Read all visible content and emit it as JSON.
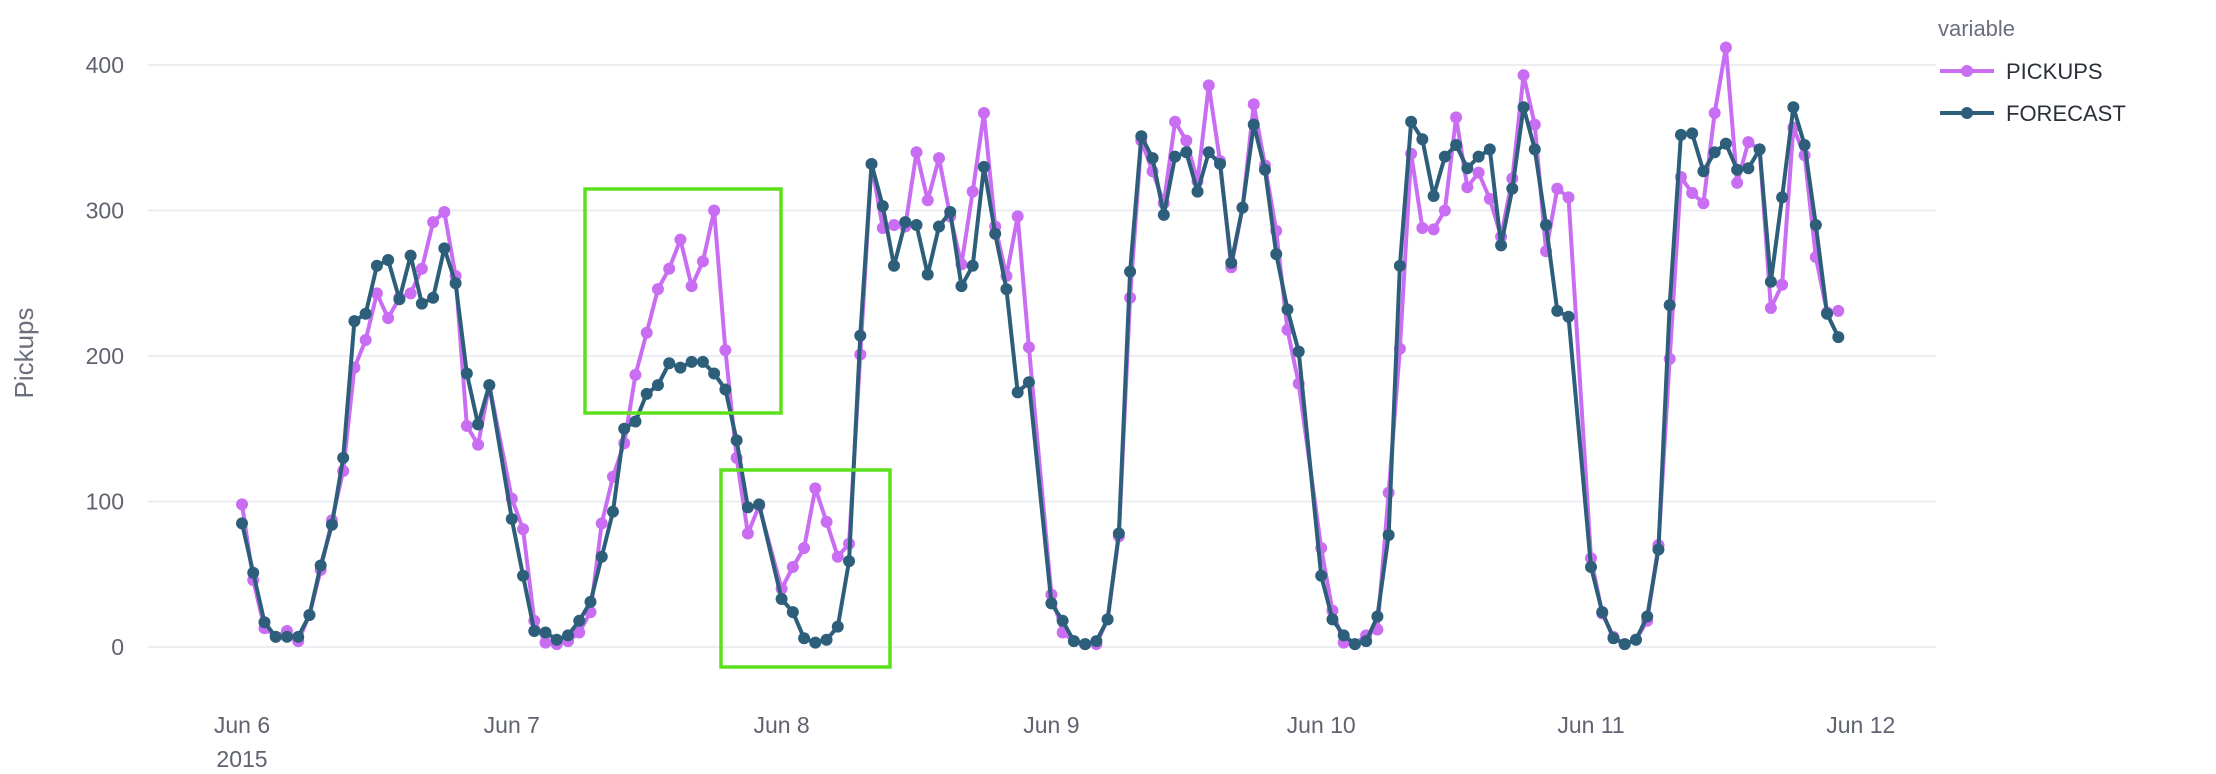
{
  "chart_data": {
    "type": "line",
    "ylabel": "Pickups",
    "xlabel": "",
    "ylim": [
      0,
      410
    ],
    "yticks": [
      0,
      100,
      200,
      300,
      400
    ],
    "xticks": [
      {
        "date": "2015-06-06",
        "label": "Jun 6",
        "sublabel": "2015"
      },
      {
        "date": "2015-06-07",
        "label": "Jun 7"
      },
      {
        "date": "2015-06-08",
        "label": "Jun 8"
      },
      {
        "date": "2015-06-09",
        "label": "Jun 9"
      },
      {
        "date": "2015-06-10",
        "label": "Jun 10"
      },
      {
        "date": "2015-06-11",
        "label": "Jun 11"
      },
      {
        "date": "2015-06-12",
        "label": "Jun 12"
      }
    ],
    "grid": true,
    "legend": {
      "title": "variable",
      "placement": "top-right"
    },
    "x_dates": [
      "2015-06-06",
      "2015-06-07",
      "2015-06-08",
      "2015-06-09",
      "2015-06-10",
      "2015-06-11"
    ],
    "x_hours": [
      0,
      1,
      2,
      3,
      4,
      5,
      6,
      7,
      8,
      9,
      10,
      11,
      12,
      13,
      14,
      15,
      16,
      17,
      18,
      19,
      20,
      21,
      22
    ],
    "series": [
      {
        "name": "PICKUPS",
        "color": "#c96ef2",
        "values": [
          [
            98,
            46,
            13,
            7,
            11,
            4,
            22,
            53,
            87,
            121,
            192,
            211,
            243,
            226,
            240,
            243,
            260,
            292,
            299,
            255,
            152,
            139,
            180
          ],
          [
            102,
            81,
            18,
            3,
            2,
            4,
            10,
            24,
            85,
            117,
            140,
            187,
            216,
            246,
            260,
            280,
            248,
            265,
            300,
            204,
            130,
            78,
            97
          ],
          [
            40,
            55,
            68,
            109,
            86,
            62,
            71,
            201,
            332,
            288,
            290,
            289,
            340,
            307,
            336,
            296,
            263,
            313,
            367,
            289,
            255,
            296,
            206
          ],
          [
            36,
            10,
            4,
            2,
            2,
            19,
            76,
            240,
            348,
            327,
            305,
            361,
            348,
            320,
            386,
            334,
            261,
            302,
            373,
            331,
            286,
            218,
            181
          ],
          [
            68,
            25,
            3,
            2,
            8,
            12,
            106,
            205,
            339,
            288,
            287,
            300,
            364,
            316,
            326,
            308,
            282,
            322,
            393,
            359,
            272,
            315,
            309
          ],
          [
            61,
            23,
            7,
            2,
            5,
            18,
            70,
            198,
            323,
            312,
            305,
            367,
            412,
            319,
            347,
            342,
            233,
            249,
            357,
            338,
            268,
            230,
            231
          ]
        ]
      },
      {
        "name": "FORECAST",
        "color": "#2d5f7b",
        "values": [
          [
            85,
            51,
            17,
            7,
            7,
            7,
            22,
            56,
            84,
            130,
            224,
            229,
            262,
            266,
            239,
            269,
            236,
            240,
            274,
            250,
            188,
            153,
            180
          ],
          [
            88,
            49,
            11,
            10,
            5,
            8,
            18,
            31,
            62,
            93,
            150,
            155,
            174,
            180,
            195,
            192,
            196,
            196,
            188,
            177,
            142,
            96,
            98
          ],
          [
            33,
            24,
            6,
            3,
            5,
            14,
            59,
            214,
            332,
            303,
            262,
            292,
            290,
            256,
            289,
            299,
            248,
            262,
            330,
            284,
            246,
            175,
            182
          ],
          [
            30,
            18,
            4,
            2,
            4,
            19,
            78,
            258,
            351,
            336,
            297,
            337,
            340,
            313,
            340,
            332,
            264,
            302,
            359,
            328,
            270,
            232,
            203
          ],
          [
            49,
            19,
            8,
            2,
            4,
            21,
            77,
            262,
            361,
            349,
            310,
            337,
            345,
            329,
            337,
            342,
            276,
            315,
            371,
            342,
            290,
            231,
            227
          ],
          [
            55,
            24,
            6,
            2,
            5,
            21,
            67,
            235,
            352,
            353,
            327,
            340,
            346,
            328,
            329,
            342,
            251,
            309,
            371,
            345,
            290,
            229,
            213
          ]
        ]
      }
    ],
    "highlight_color": "#5ce01c"
  }
}
